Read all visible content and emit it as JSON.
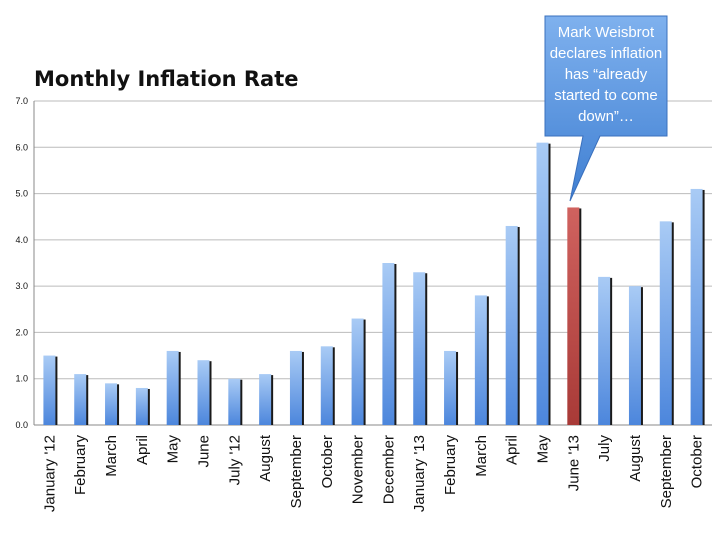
{
  "chart_data": {
    "type": "bar",
    "title": "Monthly Inflation Rate",
    "categories": [
      "January '12",
      "February",
      "March",
      "April",
      "May",
      "June",
      "July '12",
      "August",
      "September",
      "October",
      "November",
      "December",
      "January '13",
      "February",
      "March",
      "April",
      "May",
      "June '13",
      "July",
      "August",
      "September",
      "October"
    ],
    "values": [
      1.5,
      1.1,
      0.9,
      0.8,
      1.6,
      1.4,
      1.0,
      1.1,
      1.6,
      1.7,
      2.3,
      3.5,
      3.3,
      1.6,
      2.8,
      4.3,
      6.1,
      4.7,
      3.2,
      3.0,
      4.4,
      5.1
    ],
    "ylim": [
      0,
      7
    ],
    "yticks": [
      "0.0",
      "1.0",
      "2.0",
      "3.0",
      "4.0",
      "5.0",
      "6.0",
      "7.0"
    ],
    "grid": true,
    "colors": {
      "bar": "#6fa3e8",
      "highlight": "#c0504d",
      "callout": "#5b93d6"
    },
    "highlight_index": 17,
    "annotation": {
      "target": "June '13",
      "lines": [
        "Mark Weisbrot",
        "declares inflation",
        "has “already",
        "started to come",
        "down”…"
      ]
    }
  }
}
